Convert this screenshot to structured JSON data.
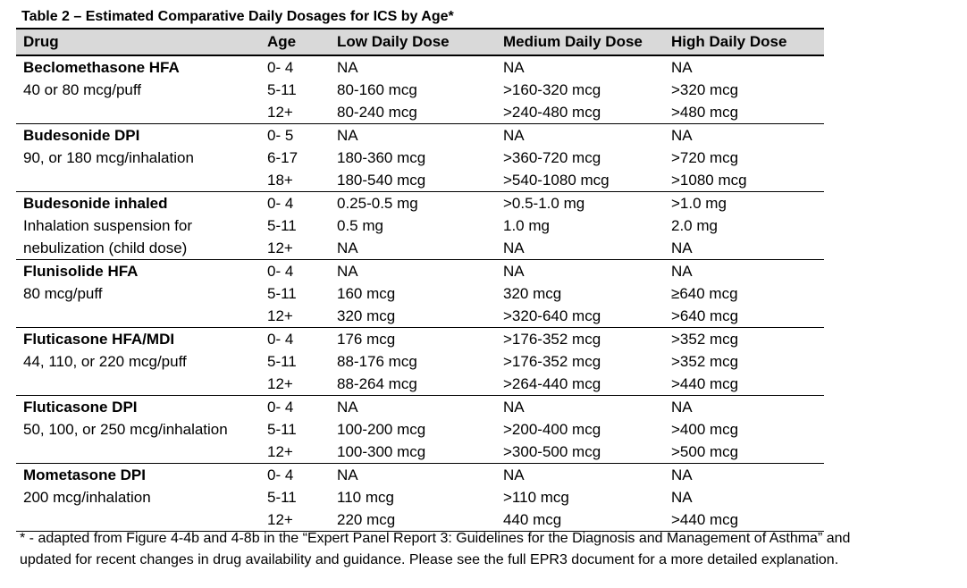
{
  "title": "Table 2 – Estimated Comparative Daily Dosages for ICS by Age*",
  "headers": [
    "Drug",
    "Age",
    "Low Daily Dose",
    "Medium Daily Dose",
    "High Daily Dose"
  ],
  "groups": [
    {
      "rows": [
        {
          "drug": "Beclomethasone HFA",
          "age": "0- 4",
          "low": "NA",
          "medium": "NA",
          "high": "NA"
        },
        {
          "drug": "40 or 80 mcg/puff",
          "age": "5-11",
          "low": "80-160 mcg",
          "medium": ">160-320 mcg",
          "high": ">320 mcg"
        },
        {
          "drug": "",
          "age": "12+",
          "low": "80-240 mcg",
          "medium": ">240-480 mcg",
          "high": ">480 mcg"
        }
      ]
    },
    {
      "rows": [
        {
          "drug": "Budesonide DPI",
          "age": "0- 5",
          "low": "NA",
          "medium": "NA",
          "high": "NA"
        },
        {
          "drug": "90, or 180 mcg/inhalation",
          "age": "6-17",
          "low": "180-360 mcg",
          "medium": ">360-720 mcg",
          "high": ">720 mcg"
        },
        {
          "drug": "",
          "age": "18+",
          "low": "180-540 mcg",
          "medium": ">540-1080 mcg",
          "high": ">1080 mcg"
        }
      ]
    },
    {
      "rows": [
        {
          "drug": "Budesonide inhaled",
          "age": "0- 4",
          "low": "0.25-0.5 mg",
          "medium": ">0.5-1.0 mg",
          "high": ">1.0 mg"
        },
        {
          "drug": "Inhalation suspension for",
          "age": "5-11",
          "low": "0.5 mg",
          "medium": "1.0 mg",
          "high": "2.0 mg"
        },
        {
          "drug": "nebulization (child dose)",
          "age": "12+",
          "low": "NA",
          "medium": "NA",
          "high": "NA"
        }
      ]
    },
    {
      "rows": [
        {
          "drug": "Flunisolide HFA",
          "age": "0- 4",
          "low": "NA",
          "medium": "NA",
          "high": "NA"
        },
        {
          "drug": "80 mcg/puff",
          "age": "5-11",
          "low": "160 mcg",
          "medium": "320 mcg",
          "high": "≥640 mcg"
        },
        {
          "drug": "",
          "age": "12+",
          "low": "320 mcg",
          "medium": ">320-640 mcg",
          "high": ">640 mcg"
        }
      ]
    },
    {
      "rows": [
        {
          "drug": "Fluticasone HFA/MDI",
          "age": "0- 4",
          "low": "176 mcg",
          "medium": ">176-352 mcg",
          "high": ">352 mcg"
        },
        {
          "drug": "44, 110, or  220 mcg/puff",
          "age": "5-11",
          "low": "88-176 mcg",
          "medium": ">176-352 mcg",
          "high": ">352 mcg"
        },
        {
          "drug": "",
          "age": "12+",
          "low": "88-264 mcg",
          "medium": ">264-440 mcg",
          "high": ">440 mcg"
        }
      ]
    },
    {
      "rows": [
        {
          "drug": "Fluticasone DPI",
          "age": "0- 4",
          "low": "NA",
          "medium": "NA",
          "high": "NA"
        },
        {
          "drug": "50, 100, or 250 mcg/inhalation",
          "age": "5-11",
          "low": "100-200 mcg",
          "medium": ">200-400 mcg",
          "high": ">400 mcg"
        },
        {
          "drug": "",
          "age": "12+",
          "low": "100-300 mcg",
          "medium": ">300-500 mcg",
          "high": ">500 mcg"
        }
      ]
    },
    {
      "rows": [
        {
          "drug": "Mometasone DPI",
          "age": "0- 4",
          "low": "NA",
          "medium": "NA",
          "high": "NA"
        },
        {
          "drug": "200 mcg/inhalation",
          "age": "5-11",
          "low": "110 mcg",
          "medium": ">110 mcg",
          "high": "NA"
        },
        {
          "drug": "",
          "age": "12+",
          "low": "220 mcg",
          "medium": "440 mcg",
          "high": ">440 mcg"
        }
      ]
    }
  ],
  "footnote": {
    "line1": "* - adapted from Figure 4-4b and 4-8b in the “Expert Panel Report 3: Guidelines for the Diagnosis and Management of Asthma” and",
    "line2": "updated for recent changes in drug availability and guidance. Please see the full EPR3 document for a more detailed explanation."
  }
}
